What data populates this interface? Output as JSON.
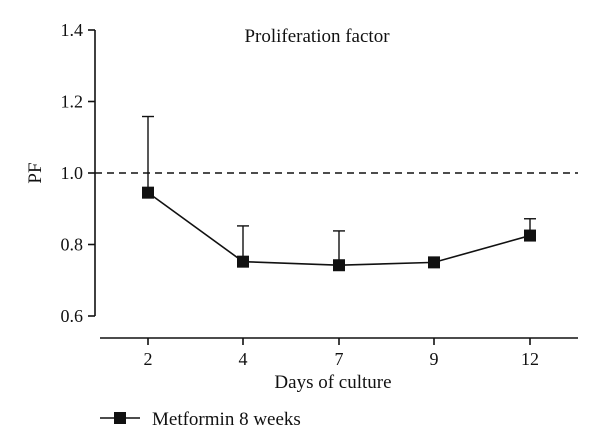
{
  "chart_data": {
    "type": "line",
    "title": "Proliferation factor",
    "xlabel": "Days of culture",
    "ylabel": "PF",
    "categories": [
      "2",
      "4",
      "7",
      "9",
      "12"
    ],
    "ylim": [
      0.6,
      1.4
    ],
    "yticks": [
      "0.6",
      "0.8",
      "1.0",
      "1.2",
      "1.4"
    ],
    "reference_line": {
      "y": 1.0,
      "style": "dashed"
    },
    "series": [
      {
        "name": "Metformin 8 weeks",
        "marker": "square",
        "color": "#111111",
        "values": [
          0.945,
          0.752,
          0.742,
          0.75,
          0.825
        ],
        "error_upper": [
          1.158,
          0.852,
          0.838,
          0.75,
          0.872
        ]
      }
    ],
    "grid": false,
    "legend": "bottom-left"
  }
}
